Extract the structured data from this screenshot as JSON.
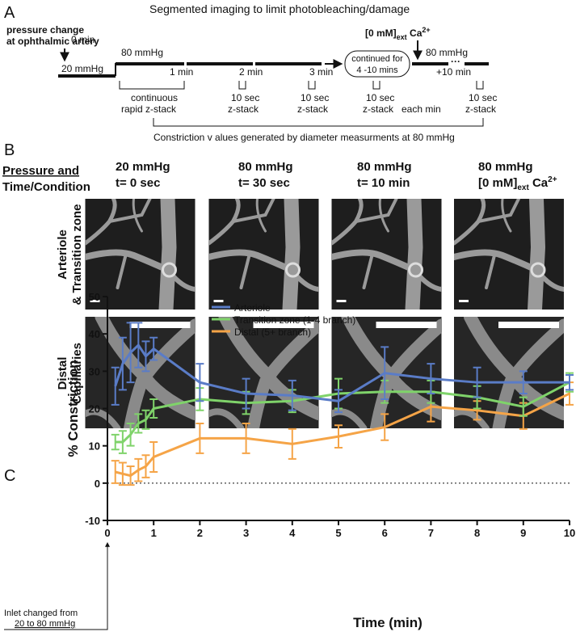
{
  "panel_a": {
    "label": "A",
    "title": "Segmented imaging to limit photobleaching/damage",
    "pressure_note": [
      "pressure change",
      "at ophthalmic artery"
    ],
    "start": "0 min",
    "baseline": "20 mmHg",
    "pressure": "80 mmHg",
    "times": [
      "1 min",
      "2 min",
      "3 min"
    ],
    "continued": [
      "continued for",
      "4 -10 mins"
    ],
    "calcium": {
      "conc": "[0 mM]",
      "sub": "ext",
      "ion": " Ca",
      "sup": "2+"
    },
    "pressure_after": "80 mmHg",
    "final_time": "+10 min",
    "continuous": [
      "continuous",
      "rapid z-stack"
    ],
    "stacks": [
      [
        "10 sec",
        "z-stack"
      ],
      [
        "10 sec",
        "z-stack"
      ],
      [
        "10 sec",
        "z-stack"
      ],
      [
        "10 sec",
        "z-stack"
      ]
    ],
    "each": "each min",
    "footnote": "Constriction v alues generated by diameter measurments at 80 mmHg"
  },
  "panel_b": {
    "label": "B",
    "row_header": [
      "Pressure and",
      "Time/Condition"
    ],
    "columns": [
      {
        "pressure": "20 mmHg",
        "time": "t= 0 sec"
      },
      {
        "pressure": "80 mmHg",
        "time": "t= 30 sec"
      },
      {
        "pressure": "80 mmHg",
        "time": "t= 10 min"
      },
      {
        "pressure": "80 mmHg",
        "conc": "[0 mM]",
        "sub": "ext",
        "ion": " Ca",
        "sup": "2+"
      }
    ],
    "rows": [
      [
        "Arteriole",
        "& Transition zone"
      ],
      [
        "Distal",
        "Capillaries"
      ]
    ]
  },
  "panel_c": {
    "label": "C"
  },
  "chart_data": {
    "type": "line",
    "x_label": "Time (min)",
    "y_label": "% Constriction",
    "xlim": [
      0,
      10
    ],
    "ylim": [
      -10,
      50
    ],
    "xticks": [
      0,
      1,
      2,
      3,
      4,
      5,
      6,
      7,
      8,
      9,
      10
    ],
    "yticks": [
      -10,
      0,
      10,
      20,
      30,
      40,
      50
    ],
    "reference_line": 0,
    "annotation": [
      "Inlet changed from",
      "20 to 80 mmHg"
    ],
    "x": [
      0.17,
      0.33,
      0.5,
      0.67,
      0.83,
      1,
      2,
      3,
      4,
      5,
      6,
      7,
      8,
      9,
      10
    ],
    "series": [
      {
        "name": "Distal (5+ branch)",
        "color": "#f5a447",
        "values": [
          3,
          2.5,
          2,
          3.5,
          4.5,
          7,
          12,
          12,
          10.5,
          12.5,
          15,
          20.5,
          19.5,
          18,
          24
        ],
        "errors": [
          3,
          3,
          2.5,
          3,
          3,
          4,
          4,
          4,
          4,
          3,
          3.5,
          4,
          2.5,
          3.5,
          3
        ]
      },
      {
        "name": "Transition zone (1-4 branch)",
        "color": "#7fd36a",
        "values": [
          11,
          11,
          13,
          16,
          17,
          20,
          22.5,
          21.5,
          22,
          24,
          24.5,
          24.5,
          23,
          20.5,
          27
        ],
        "errors": [
          2,
          3,
          3,
          2.5,
          2.5,
          2.5,
          3,
          3,
          3,
          4,
          3,
          3,
          3,
          2.5,
          2.5
        ]
      },
      {
        "name": "Arteriole",
        "color": "#5a7cc7",
        "values": [
          26,
          32,
          35,
          37,
          34,
          36,
          27,
          24,
          23.5,
          22,
          29.5,
          28,
          27,
          27,
          27
        ],
        "errors": [
          5,
          7,
          8,
          6,
          4,
          3,
          5,
          4,
          4,
          3,
          7,
          4,
          4,
          3,
          2
        ]
      }
    ]
  }
}
